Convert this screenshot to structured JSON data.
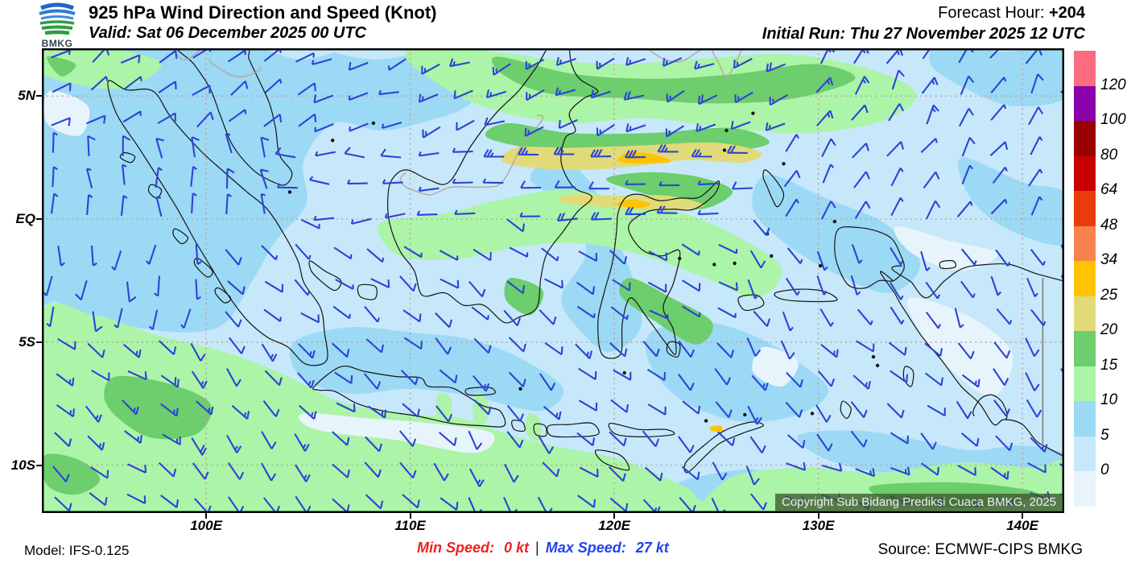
{
  "header": {
    "logo_text": "BMKG",
    "title": "925 hPa Wind Direction and Speed (Knot)",
    "valid": "Valid: Sat 06 December 2025 00 UTC",
    "forecast_hour_label": "Forecast Hour:",
    "forecast_hour_value": "+204",
    "initial_run": "Initial Run: Thu 27 November 2025 12 UTC"
  },
  "map": {
    "lat_labels": [
      "5N",
      "EQ",
      "5S",
      "10S"
    ],
    "lon_labels": [
      "100E",
      "110E",
      "120E",
      "130E",
      "140E"
    ],
    "copyright": "Copyright Sub Bidang Prediksi Cuaca BMKG, 2025"
  },
  "colorbar": {
    "labels": [
      "120",
      "100",
      "80",
      "64",
      "48",
      "34",
      "25",
      "20",
      "15",
      "10",
      "5",
      "0"
    ],
    "colors_top_to_bottom": [
      "#FC6C80",
      "#8A01AC",
      "#9A0000",
      "#C80000",
      "#E83C0C",
      "#F8814E",
      "#FFC301",
      "#E0DB78",
      "#6CCE6C",
      "#ACF4A8",
      "#9CD9F5",
      "#C7E8FA",
      "#E8F4FC"
    ]
  },
  "footer": {
    "model": "Model: IFS-0.125",
    "min_speed_label": "Min Speed:",
    "min_speed_value": "0 kt",
    "separator": "|",
    "max_speed_label": "Max Speed:",
    "max_speed_value": "27 kt",
    "source": "Source: ECMWF-CIPS BMKG"
  },
  "style": {
    "barb_color": "#2B44D6",
    "coast_color": "#141414",
    "foreign_border_color": "#B5A79B",
    "grid_color": "#B3A49E",
    "map_border_color": "#000000"
  }
}
